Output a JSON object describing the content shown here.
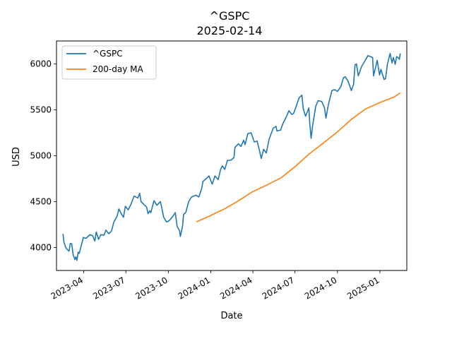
{
  "chart_data": {
    "type": "line",
    "title": "^GSPC",
    "subtitle": "2025-02-14",
    "xlabel": "Date",
    "ylabel": "USD",
    "x_range": [
      "2023-02-01",
      "2025-02-28"
    ],
    "ylim": [
      3750,
      6250
    ],
    "grid": false,
    "legend_position": "top-left",
    "x_ticks": [
      "2023-04-01",
      "2023-07-01",
      "2023-10-01",
      "2024-01-01",
      "2024-04-01",
      "2024-07-01",
      "2024-10-01",
      "2025-01-01"
    ],
    "x_tick_labels": [
      "2023-04",
      "2023-07",
      "2023-10",
      "2024-01",
      "2024-04",
      "2024-07",
      "2024-10",
      "2025-01"
    ],
    "y_ticks": [
      4000,
      4500,
      5000,
      5500,
      6000
    ],
    "y_tick_labels": [
      "4000",
      "4500",
      "5000",
      "5500",
      "6000"
    ],
    "series": [
      {
        "name": "^GSPC",
        "color": "#1f77b4",
        "points": [
          [
            "2023-02-15",
            4150
          ],
          [
            "2023-02-17",
            4060
          ],
          [
            "2023-02-21",
            4000
          ],
          [
            "2023-02-24",
            3980
          ],
          [
            "2023-02-28",
            3960
          ],
          [
            "2023-03-03",
            4045
          ],
          [
            "2023-03-06",
            4040
          ],
          [
            "2023-03-09",
            3920
          ],
          [
            "2023-03-13",
            3870
          ],
          [
            "2023-03-15",
            3900
          ],
          [
            "2023-03-17",
            3860
          ],
          [
            "2023-03-20",
            3950
          ],
          [
            "2023-03-22",
            3935
          ],
          [
            "2023-03-24",
            3970
          ],
          [
            "2023-03-31",
            4110
          ],
          [
            "2023-04-06",
            4100
          ],
          [
            "2023-04-14",
            4140
          ],
          [
            "2023-04-20",
            4130
          ],
          [
            "2023-04-25",
            4070
          ],
          [
            "2023-04-28",
            4170
          ],
          [
            "2023-05-03",
            4090
          ],
          [
            "2023-05-08",
            4140
          ],
          [
            "2023-05-15",
            4135
          ],
          [
            "2023-05-19",
            4190
          ],
          [
            "2023-05-25",
            4150
          ],
          [
            "2023-05-31",
            4180
          ],
          [
            "2023-06-05",
            4275
          ],
          [
            "2023-06-12",
            4340
          ],
          [
            "2023-06-16",
            4420
          ],
          [
            "2023-06-21",
            4370
          ],
          [
            "2023-06-26",
            4330
          ],
          [
            "2023-06-30",
            4450
          ],
          [
            "2023-07-06",
            4410
          ],
          [
            "2023-07-12",
            4470
          ],
          [
            "2023-07-19",
            4560
          ],
          [
            "2023-07-27",
            4540
          ],
          [
            "2023-07-31",
            4590
          ],
          [
            "2023-08-03",
            4500
          ],
          [
            "2023-08-09",
            4470
          ],
          [
            "2023-08-15",
            4440
          ],
          [
            "2023-08-18",
            4370
          ],
          [
            "2023-08-22",
            4400
          ],
          [
            "2023-08-24",
            4380
          ],
          [
            "2023-08-31",
            4510
          ],
          [
            "2023-09-06",
            4460
          ],
          [
            "2023-09-14",
            4500
          ],
          [
            "2023-09-21",
            4330
          ],
          [
            "2023-09-27",
            4280
          ],
          [
            "2023-10-02",
            4290
          ],
          [
            "2023-10-06",
            4310
          ],
          [
            "2023-10-12",
            4350
          ],
          [
            "2023-10-16",
            4380
          ],
          [
            "2023-10-20",
            4230
          ],
          [
            "2023-10-25",
            4185
          ],
          [
            "2023-10-27",
            4120
          ],
          [
            "2023-11-01",
            4240
          ],
          [
            "2023-11-03",
            4360
          ],
          [
            "2023-11-08",
            4385
          ],
          [
            "2023-11-14",
            4500
          ],
          [
            "2023-11-20",
            4550
          ],
          [
            "2023-11-30",
            4570
          ],
          [
            "2023-12-06",
            4550
          ],
          [
            "2023-12-12",
            4640
          ],
          [
            "2023-12-15",
            4720
          ],
          [
            "2023-12-22",
            4750
          ],
          [
            "2023-12-28",
            4780
          ],
          [
            "2024-01-04",
            4690
          ],
          [
            "2024-01-10",
            4780
          ],
          [
            "2024-01-17",
            4740
          ],
          [
            "2024-01-22",
            4850
          ],
          [
            "2024-01-26",
            4890
          ],
          [
            "2024-01-31",
            4850
          ],
          [
            "2024-02-06",
            4950
          ],
          [
            "2024-02-13",
            4950
          ],
          [
            "2024-02-20",
            4980
          ],
          [
            "2024-02-22",
            5090
          ],
          [
            "2024-03-01",
            5130
          ],
          [
            "2024-03-06",
            5100
          ],
          [
            "2024-03-12",
            5170
          ],
          [
            "2024-03-15",
            5120
          ],
          [
            "2024-03-21",
            5240
          ],
          [
            "2024-03-28",
            5250
          ],
          [
            "2024-04-04",
            5150
          ],
          [
            "2024-04-10",
            5160
          ],
          [
            "2024-04-15",
            5060
          ],
          [
            "2024-04-19",
            4970
          ],
          [
            "2024-04-24",
            5070
          ],
          [
            "2024-04-30",
            5030
          ],
          [
            "2024-05-06",
            5180
          ],
          [
            "2024-05-15",
            5300
          ],
          [
            "2024-05-21",
            5320
          ],
          [
            "2024-05-23",
            5270
          ],
          [
            "2024-05-31",
            5280
          ],
          [
            "2024-06-05",
            5350
          ],
          [
            "2024-06-12",
            5420
          ],
          [
            "2024-06-18",
            5490
          ],
          [
            "2024-06-24",
            5450
          ],
          [
            "2024-06-28",
            5460
          ],
          [
            "2024-07-03",
            5530
          ],
          [
            "2024-07-10",
            5630
          ],
          [
            "2024-07-16",
            5660
          ],
          [
            "2024-07-19",
            5510
          ],
          [
            "2024-07-24",
            5430
          ],
          [
            "2024-07-31",
            5520
          ],
          [
            "2024-08-02",
            5350
          ],
          [
            "2024-08-05",
            5190
          ],
          [
            "2024-08-08",
            5320
          ],
          [
            "2024-08-15",
            5540
          ],
          [
            "2024-08-20",
            5600
          ],
          [
            "2024-08-28",
            5590
          ],
          [
            "2024-09-03",
            5520
          ],
          [
            "2024-09-06",
            5410
          ],
          [
            "2024-09-11",
            5550
          ],
          [
            "2024-09-19",
            5710
          ],
          [
            "2024-09-25",
            5720
          ],
          [
            "2024-10-01",
            5700
          ],
          [
            "2024-10-08",
            5750
          ],
          [
            "2024-10-14",
            5850
          ],
          [
            "2024-10-18",
            5860
          ],
          [
            "2024-10-24",
            5810
          ],
          [
            "2024-10-31",
            5710
          ],
          [
            "2024-11-05",
            5780
          ],
          [
            "2024-11-08",
            5990
          ],
          [
            "2024-11-11",
            6000
          ],
          [
            "2024-11-15",
            5870
          ],
          [
            "2024-11-22",
            5970
          ],
          [
            "2024-11-29",
            6030
          ],
          [
            "2024-12-06",
            6090
          ],
          [
            "2024-12-11",
            6080
          ],
          [
            "2024-12-16",
            6070
          ],
          [
            "2024-12-18",
            5870
          ],
          [
            "2024-12-23",
            5975
          ],
          [
            "2024-12-26",
            6040
          ],
          [
            "2024-12-31",
            5880
          ],
          [
            "2025-01-03",
            5940
          ],
          [
            "2025-01-10",
            5830
          ],
          [
            "2025-01-13",
            5840
          ],
          [
            "2025-01-17",
            5995
          ],
          [
            "2025-01-23",
            6115
          ],
          [
            "2025-01-27",
            6010
          ],
          [
            "2025-01-30",
            6070
          ],
          [
            "2025-02-03",
            5995
          ],
          [
            "2025-02-06",
            6080
          ],
          [
            "2025-02-10",
            6065
          ],
          [
            "2025-02-12",
            6050
          ],
          [
            "2025-02-14",
            6115
          ]
        ]
      },
      {
        "name": "200-day MA",
        "color": "#ff7f0e",
        "points": [
          [
            "2023-12-01",
            4280
          ],
          [
            "2024-01-01",
            4350
          ],
          [
            "2024-02-01",
            4425
          ],
          [
            "2024-03-01",
            4510
          ],
          [
            "2024-04-01",
            4610
          ],
          [
            "2024-05-01",
            4680
          ],
          [
            "2024-06-01",
            4760
          ],
          [
            "2024-07-01",
            4880
          ],
          [
            "2024-08-01",
            5020
          ],
          [
            "2024-09-01",
            5140
          ],
          [
            "2024-10-01",
            5260
          ],
          [
            "2024-11-01",
            5400
          ],
          [
            "2024-12-01",
            5510
          ],
          [
            "2025-01-01",
            5580
          ],
          [
            "2025-02-01",
            5640
          ],
          [
            "2025-02-14",
            5685
          ]
        ]
      }
    ]
  }
}
